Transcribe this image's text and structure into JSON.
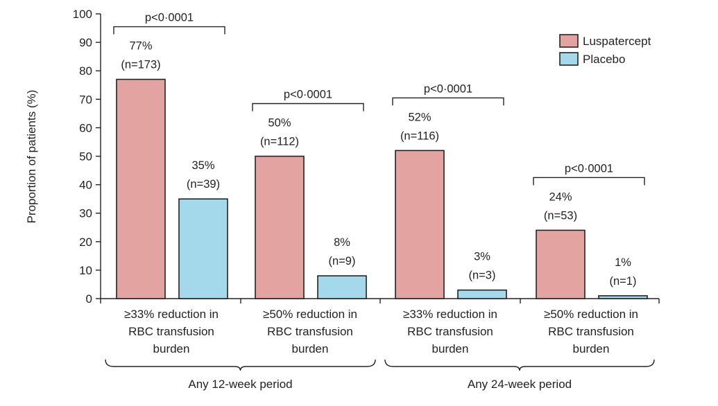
{
  "chart_data": {
    "type": "bar",
    "ylabel": "Proportion of patients (%)",
    "ylim": [
      0,
      100
    ],
    "yticks": [
      0,
      10,
      20,
      30,
      40,
      50,
      60,
      70,
      80,
      90,
      100
    ],
    "series": [
      {
        "name": "Luspatercept",
        "color": "#e3a3a1",
        "values": [
          77,
          50,
          52,
          24
        ],
        "labels": [
          "77%",
          "50%",
          "52%",
          "24%"
        ],
        "n_labels": [
          "(n=173)",
          "(n=112)",
          "(n=116)",
          "(n=53)"
        ]
      },
      {
        "name": "Placebo",
        "color": "#a3d9ea",
        "values": [
          35,
          8,
          3,
          1
        ],
        "labels": [
          "35%",
          "8%",
          "3%",
          "1%"
        ],
        "n_labels": [
          "(n=39)",
          "(n=9)",
          "(n=3)",
          "(n=1)"
        ]
      }
    ],
    "categories": [
      {
        "lines": [
          "≥33% reduction in",
          "RBC transfusion",
          "burden"
        ]
      },
      {
        "lines": [
          "≥50% reduction in",
          "RBC transfusion",
          "burden"
        ]
      },
      {
        "lines": [
          "≥33% reduction in",
          "RBC transfusion",
          "burden"
        ]
      },
      {
        "lines": [
          "≥50% reduction in",
          "RBC transfusion",
          "burden"
        ]
      }
    ],
    "groups": [
      {
        "label": "Any 12-week period",
        "categories": [
          0,
          1
        ]
      },
      {
        "label": "Any 24-week period",
        "categories": [
          2,
          3
        ]
      }
    ],
    "p_values": [
      "p<0·0001",
      "p<0·0001",
      "p<0·0001",
      "p<0·0001"
    ],
    "legend": {
      "position": "top-right"
    }
  }
}
